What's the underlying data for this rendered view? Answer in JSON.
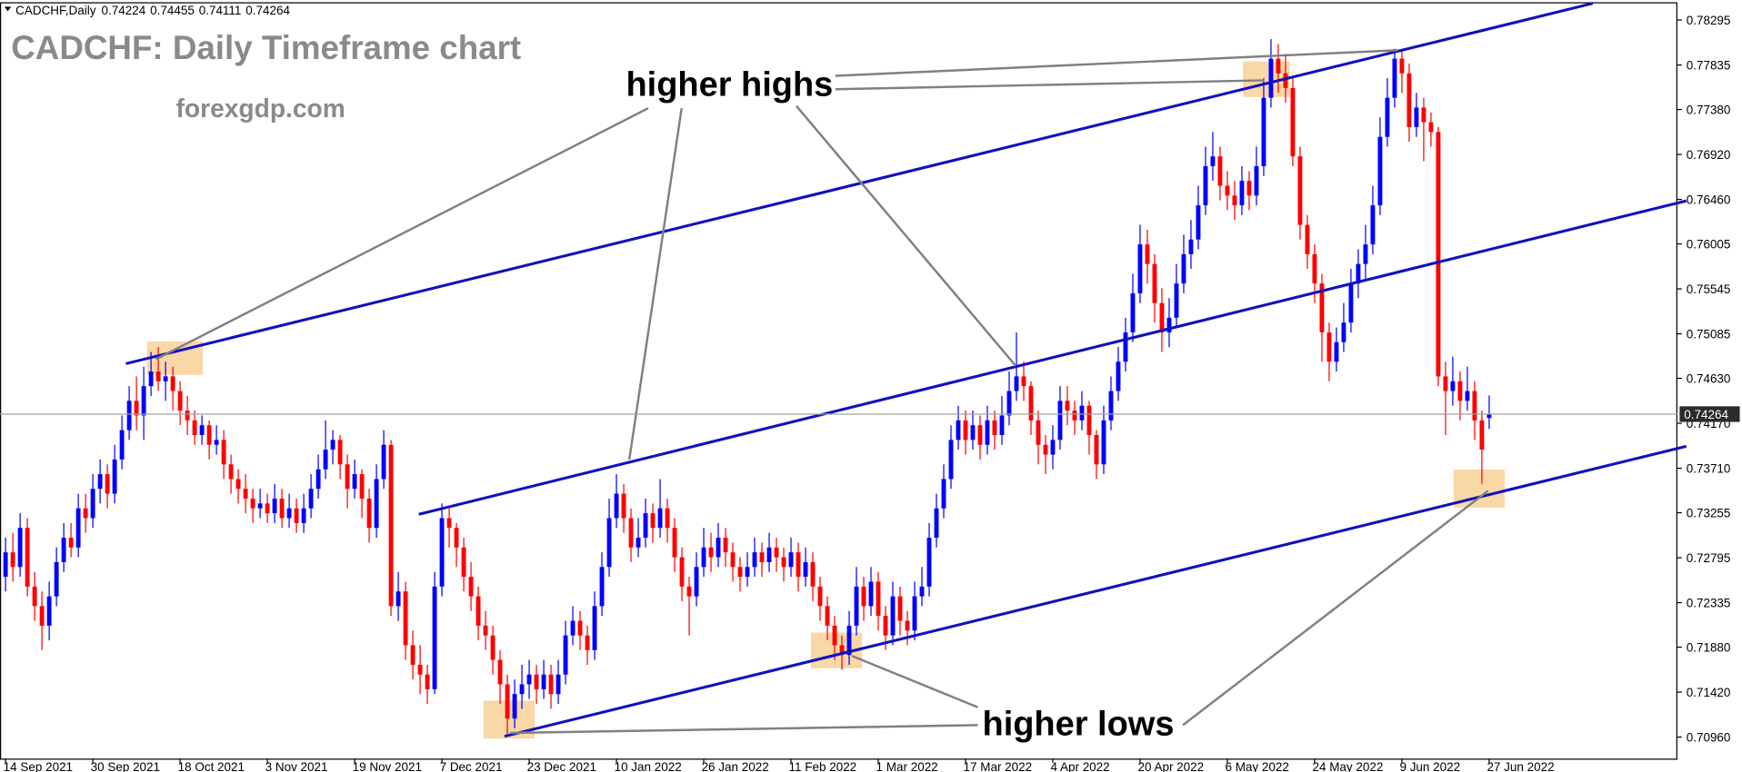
{
  "chart_data": {
    "type": "candlestick",
    "symbol": "CADCHF,Daily",
    "title": "CADCHF: Daily Timeframe chart",
    "subtitle": "forexgdp.com",
    "annotations": [
      "higher highs",
      "higher lows"
    ],
    "up_color": "#0000ff",
    "down_color": "#ff0000",
    "grid": false,
    "ylim": [
      0.7074,
      0.785
    ],
    "yticks": [
      0.78295,
      0.77835,
      {
        "value": 0.7738,
        "label": "0.77380"
      },
      {
        "value": 0.7692,
        "label": "0.76920"
      },
      {
        "value": 0.7646,
        "label": "0.76460"
      },
      0.76005,
      0.75545,
      0.75085,
      {
        "value": 0.7463,
        "label": "0.74630"
      },
      {
        "value": 0.7417,
        "label": "0.74170"
      },
      {
        "value": 0.7371,
        "label": "0.73710"
      },
      0.73255,
      0.72795,
      0.72335,
      {
        "value": 0.7188,
        "label": "0.71880"
      },
      {
        "value": 0.7142,
        "label": "0.71420"
      },
      {
        "value": 0.7096,
        "label": "0.70960"
      }
    ],
    "categories": [
      "14 Sep 2021",
      null,
      null,
      null,
      null,
      null,
      null,
      null,
      null,
      null,
      null,
      null,
      "30 Sep 2021",
      null,
      null,
      null,
      null,
      null,
      null,
      null,
      null,
      null,
      null,
      null,
      "18 Oct 2021",
      null,
      null,
      null,
      null,
      null,
      null,
      null,
      null,
      null,
      null,
      null,
      "3 Nov 2021",
      null,
      null,
      null,
      null,
      null,
      null,
      null,
      null,
      null,
      null,
      null,
      "19 Nov 2021",
      null,
      null,
      null,
      null,
      null,
      null,
      null,
      null,
      null,
      null,
      null,
      "7 Dec 2021",
      null,
      null,
      null,
      null,
      null,
      null,
      null,
      null,
      null,
      null,
      null,
      "23 Dec 2021",
      null,
      null,
      null,
      null,
      null,
      null,
      null,
      null,
      null,
      null,
      null,
      "10 Jan 2022",
      null,
      null,
      null,
      null,
      null,
      null,
      null,
      null,
      null,
      null,
      null,
      "26 Jan 2022",
      null,
      null,
      null,
      null,
      null,
      null,
      null,
      null,
      null,
      null,
      null,
      "11 Feb 2022",
      null,
      null,
      null,
      null,
      null,
      null,
      null,
      null,
      null,
      null,
      null,
      "1 Mar 2022",
      null,
      null,
      null,
      null,
      null,
      null,
      null,
      null,
      null,
      null,
      null,
      "17 Mar 2022",
      null,
      null,
      null,
      null,
      null,
      null,
      null,
      null,
      null,
      null,
      null,
      "4 Apr 2022",
      null,
      null,
      null,
      null,
      null,
      null,
      null,
      null,
      null,
      null,
      null,
      "20 Apr 2022",
      null,
      null,
      null,
      null,
      null,
      null,
      null,
      null,
      null,
      null,
      null,
      "6 May 2022",
      null,
      null,
      null,
      null,
      null,
      null,
      null,
      null,
      null,
      null,
      null,
      "24 May 2022",
      null,
      null,
      null,
      null,
      null,
      null,
      null,
      null,
      null,
      null,
      null,
      "9 Jun 2022",
      null,
      null,
      null,
      null,
      null,
      null,
      null,
      null,
      null,
      null,
      null,
      "27 Jun 2022"
    ],
    "ohlc": [
      [
        0.726,
        0.73,
        0.7245,
        0.7285
      ],
      [
        0.7285,
        0.7305,
        0.7255,
        0.727
      ],
      [
        0.727,
        0.7325,
        0.726,
        0.731
      ],
      [
        0.731,
        0.732,
        0.724,
        0.725
      ],
      [
        0.725,
        0.7265,
        0.7215,
        0.723
      ],
      [
        0.723,
        0.7245,
        0.7185,
        0.721
      ],
      [
        0.721,
        0.7255,
        0.7195,
        0.724
      ],
      [
        0.724,
        0.729,
        0.723,
        0.7275
      ],
      [
        0.7275,
        0.7315,
        0.7265,
        0.73
      ],
      [
        0.73,
        0.7315,
        0.728,
        0.729
      ],
      [
        0.729,
        0.7345,
        0.728,
        0.733
      ],
      [
        0.733,
        0.7345,
        0.7305,
        0.732
      ],
      [
        0.732,
        0.7365,
        0.731,
        0.735
      ],
      [
        0.735,
        0.738,
        0.7335,
        0.7365
      ],
      [
        0.7365,
        0.7375,
        0.733,
        0.7345
      ],
      [
        0.7345,
        0.7395,
        0.7335,
        0.738
      ],
      [
        0.738,
        0.7425,
        0.737,
        0.741
      ],
      [
        0.741,
        0.7455,
        0.74,
        0.744
      ],
      [
        0.744,
        0.7465,
        0.741,
        0.7425
      ],
      [
        0.7425,
        0.7475,
        0.74,
        0.7455
      ],
      [
        0.7455,
        0.749,
        0.7445,
        0.747
      ],
      [
        0.747,
        0.7495,
        0.745,
        0.746
      ],
      [
        0.746,
        0.748,
        0.744,
        0.7465
      ],
      [
        0.7465,
        0.7475,
        0.743,
        0.745
      ],
      [
        0.745,
        0.746,
        0.7415,
        0.743
      ],
      [
        0.743,
        0.7445,
        0.7405,
        0.742
      ],
      [
        0.742,
        0.743,
        0.7395,
        0.7405
      ],
      [
        0.7405,
        0.7425,
        0.7395,
        0.7415
      ],
      [
        0.7415,
        0.742,
        0.738,
        0.7395
      ],
      [
        0.7395,
        0.7415,
        0.7385,
        0.74
      ],
      [
        0.74,
        0.741,
        0.736,
        0.7375
      ],
      [
        0.7375,
        0.7385,
        0.7345,
        0.736
      ],
      [
        0.736,
        0.737,
        0.7335,
        0.735
      ],
      [
        0.735,
        0.7365,
        0.7325,
        0.734
      ],
      [
        0.734,
        0.735,
        0.7315,
        0.733
      ],
      [
        0.733,
        0.735,
        0.732,
        0.7335
      ],
      [
        0.7335,
        0.7345,
        0.7315,
        0.7325
      ],
      [
        0.7325,
        0.7355,
        0.7315,
        0.734
      ],
      [
        0.734,
        0.735,
        0.731,
        0.732
      ],
      [
        0.732,
        0.7345,
        0.731,
        0.733
      ],
      [
        0.733,
        0.734,
        0.7305,
        0.7315
      ],
      [
        0.7315,
        0.7345,
        0.7305,
        0.733
      ],
      [
        0.733,
        0.7365,
        0.732,
        0.735
      ],
      [
        0.735,
        0.7385,
        0.734,
        0.737
      ],
      [
        0.737,
        0.742,
        0.736,
        0.739
      ],
      [
        0.739,
        0.741,
        0.7375,
        0.74
      ],
      [
        0.74,
        0.7405,
        0.736,
        0.7375
      ],
      [
        0.7375,
        0.7385,
        0.733,
        0.735
      ],
      [
        0.735,
        0.738,
        0.734,
        0.7365
      ],
      [
        0.7365,
        0.737,
        0.732,
        0.734
      ],
      [
        0.734,
        0.735,
        0.7295,
        0.731
      ],
      [
        0.731,
        0.7375,
        0.73,
        0.736
      ],
      [
        0.736,
        0.741,
        0.735,
        0.7395
      ],
      [
        0.7395,
        0.74,
        0.722,
        0.723
      ],
      [
        0.723,
        0.7265,
        0.7215,
        0.7245
      ],
      [
        0.7245,
        0.7255,
        0.7175,
        0.719
      ],
      [
        0.719,
        0.7205,
        0.7155,
        0.717
      ],
      [
        0.717,
        0.719,
        0.714,
        0.716
      ],
      [
        0.716,
        0.717,
        0.713,
        0.7145
      ],
      [
        0.7145,
        0.7265,
        0.714,
        0.725
      ],
      [
        0.725,
        0.7335,
        0.724,
        0.732
      ],
      [
        0.732,
        0.733,
        0.729,
        0.731
      ],
      [
        0.731,
        0.7315,
        0.727,
        0.729
      ],
      [
        0.729,
        0.73,
        0.7245,
        0.726
      ],
      [
        0.726,
        0.7275,
        0.7225,
        0.724
      ],
      [
        0.724,
        0.725,
        0.7195,
        0.721
      ],
      [
        0.721,
        0.7225,
        0.7185,
        0.72
      ],
      [
        0.72,
        0.721,
        0.716,
        0.7175
      ],
      [
        0.7175,
        0.7185,
        0.713,
        0.715
      ],
      [
        0.715,
        0.716,
        0.7098,
        0.7115
      ],
      [
        0.7115,
        0.7155,
        0.7105,
        0.714
      ],
      [
        0.714,
        0.717,
        0.7125,
        0.715
      ],
      [
        0.715,
        0.7175,
        0.7135,
        0.716
      ],
      [
        0.716,
        0.717,
        0.713,
        0.7145
      ],
      [
        0.7145,
        0.7175,
        0.7135,
        0.716
      ],
      [
        0.716,
        0.717,
        0.7125,
        0.714
      ],
      [
        0.714,
        0.7175,
        0.713,
        0.716
      ],
      [
        0.716,
        0.7215,
        0.715,
        0.72
      ],
      [
        0.72,
        0.723,
        0.719,
        0.7215
      ],
      [
        0.7215,
        0.7225,
        0.7185,
        0.72
      ],
      [
        0.72,
        0.721,
        0.717,
        0.7185
      ],
      [
        0.7185,
        0.7245,
        0.7175,
        0.723
      ],
      [
        0.723,
        0.7285,
        0.722,
        0.727
      ],
      [
        0.727,
        0.734,
        0.726,
        0.732
      ],
      [
        0.732,
        0.7365,
        0.731,
        0.7345
      ],
      [
        0.7345,
        0.7355,
        0.7305,
        0.732
      ],
      [
        0.732,
        0.733,
        0.7275,
        0.729
      ],
      [
        0.729,
        0.732,
        0.728,
        0.73
      ],
      [
        0.73,
        0.734,
        0.729,
        0.7325
      ],
      [
        0.7325,
        0.7335,
        0.7295,
        0.731
      ],
      [
        0.731,
        0.736,
        0.73,
        0.733
      ],
      [
        0.733,
        0.734,
        0.7295,
        0.731
      ],
      [
        0.731,
        0.732,
        0.7265,
        0.728
      ],
      [
        0.728,
        0.729,
        0.7235,
        0.725
      ],
      [
        0.725,
        0.726,
        0.72,
        0.724
      ],
      [
        0.724,
        0.7285,
        0.723,
        0.727
      ],
      [
        0.727,
        0.731,
        0.726,
        0.729
      ],
      [
        0.729,
        0.7305,
        0.7265,
        0.728
      ],
      [
        0.728,
        0.7315,
        0.727,
        0.73
      ],
      [
        0.73,
        0.731,
        0.727,
        0.7285
      ],
      [
        0.7285,
        0.7295,
        0.7255,
        0.727
      ],
      [
        0.727,
        0.728,
        0.7245,
        0.726
      ],
      [
        0.726,
        0.7285,
        0.725,
        0.727
      ],
      [
        0.727,
        0.73,
        0.726,
        0.7285
      ],
      [
        0.7285,
        0.7295,
        0.726,
        0.7275
      ],
      [
        0.7275,
        0.7305,
        0.7265,
        0.729
      ],
      [
        0.729,
        0.73,
        0.7265,
        0.728
      ],
      [
        0.728,
        0.729,
        0.7255,
        0.727
      ],
      [
        0.727,
        0.73,
        0.726,
        0.7285
      ],
      [
        0.7285,
        0.7295,
        0.7245,
        0.726
      ],
      [
        0.726,
        0.729,
        0.725,
        0.7275
      ],
      [
        0.7275,
        0.7285,
        0.7235,
        0.725
      ],
      [
        0.725,
        0.726,
        0.7215,
        0.723
      ],
      [
        0.723,
        0.724,
        0.7195,
        0.721
      ],
      [
        0.721,
        0.722,
        0.7175,
        0.719
      ],
      [
        0.719,
        0.72,
        0.7165,
        0.718
      ],
      [
        0.718,
        0.7225,
        0.717,
        0.721
      ],
      [
        0.721,
        0.727,
        0.72,
        0.725
      ],
      [
        0.725,
        0.726,
        0.7215,
        0.723
      ],
      [
        0.723,
        0.727,
        0.722,
        0.7255
      ],
      [
        0.7255,
        0.7265,
        0.7205,
        0.722
      ],
      [
        0.722,
        0.723,
        0.7185,
        0.72
      ],
      [
        0.72,
        0.7255,
        0.719,
        0.724
      ],
      [
        0.724,
        0.725,
        0.72,
        0.7215
      ],
      [
        0.7215,
        0.7225,
        0.719,
        0.7205
      ],
      [
        0.7205,
        0.7255,
        0.7195,
        0.724
      ],
      [
        0.724,
        0.727,
        0.723,
        0.725
      ],
      [
        0.725,
        0.7315,
        0.724,
        0.73
      ],
      [
        0.73,
        0.7345,
        0.729,
        0.733
      ],
      [
        0.733,
        0.7375,
        0.732,
        0.736
      ],
      [
        0.736,
        0.7415,
        0.735,
        0.74
      ],
      [
        0.74,
        0.7435,
        0.739,
        0.742
      ],
      [
        0.742,
        0.743,
        0.7385,
        0.74
      ],
      [
        0.74,
        0.743,
        0.739,
        0.7415
      ],
      [
        0.7415,
        0.7425,
        0.738,
        0.7395
      ],
      [
        0.7395,
        0.7435,
        0.7385,
        0.742
      ],
      [
        0.742,
        0.743,
        0.739,
        0.7405
      ],
      [
        0.7405,
        0.7445,
        0.7395,
        0.7425
      ],
      [
        0.7425,
        0.747,
        0.7415,
        0.745
      ],
      [
        0.745,
        0.751,
        0.744,
        0.7465
      ],
      [
        0.7465,
        0.748,
        0.744,
        0.7455
      ],
      [
        0.7455,
        0.746,
        0.7405,
        0.742
      ],
      [
        0.742,
        0.743,
        0.7375,
        0.7395
      ],
      [
        0.7395,
        0.7405,
        0.7365,
        0.7385
      ],
      [
        0.7385,
        0.7415,
        0.737,
        0.74
      ],
      [
        0.74,
        0.7455,
        0.739,
        0.744
      ],
      [
        0.744,
        0.7455,
        0.7415,
        0.743
      ],
      [
        0.743,
        0.744,
        0.7405,
        0.742
      ],
      [
        0.742,
        0.745,
        0.741,
        0.7435
      ],
      [
        0.7435,
        0.744,
        0.7385,
        0.7405
      ],
      [
        0.7405,
        0.741,
        0.736,
        0.7375
      ],
      [
        0.7375,
        0.7435,
        0.7365,
        0.742
      ],
      [
        0.742,
        0.7465,
        0.741,
        0.745
      ],
      [
        0.745,
        0.7495,
        0.744,
        0.748
      ],
      [
        0.748,
        0.7525,
        0.747,
        0.751
      ],
      [
        0.751,
        0.757,
        0.75,
        0.755
      ],
      [
        0.755,
        0.762,
        0.754,
        0.76
      ],
      [
        0.76,
        0.7615,
        0.756,
        0.758
      ],
      [
        0.758,
        0.759,
        0.752,
        0.754
      ],
      [
        0.754,
        0.7555,
        0.749,
        0.751
      ],
      [
        0.751,
        0.7545,
        0.7495,
        0.7525
      ],
      [
        0.7525,
        0.758,
        0.7515,
        0.756
      ],
      [
        0.756,
        0.761,
        0.755,
        0.759
      ],
      [
        0.759,
        0.7625,
        0.7575,
        0.7605
      ],
      [
        0.7605,
        0.766,
        0.7595,
        0.764
      ],
      [
        0.764,
        0.77,
        0.763,
        0.768
      ],
      [
        0.768,
        0.7715,
        0.7665,
        0.769
      ],
      [
        0.769,
        0.77,
        0.7645,
        0.766
      ],
      [
        0.766,
        0.7675,
        0.7635,
        0.765
      ],
      [
        0.765,
        0.7665,
        0.7625,
        0.764
      ],
      [
        0.764,
        0.768,
        0.763,
        0.7665
      ],
      [
        0.7665,
        0.7675,
        0.7635,
        0.765
      ],
      [
        0.765,
        0.77,
        0.764,
        0.768
      ],
      [
        0.768,
        0.777,
        0.767,
        0.775
      ],
      [
        0.775,
        0.781,
        0.774,
        0.779
      ],
      [
        0.779,
        0.7805,
        0.7755,
        0.7775
      ],
      [
        0.7775,
        0.7795,
        0.7745,
        0.776
      ],
      [
        0.776,
        0.777,
        0.768,
        0.769
      ],
      [
        0.769,
        0.77,
        0.7605,
        0.762
      ],
      [
        0.762,
        0.763,
        0.7575,
        0.759
      ],
      [
        0.759,
        0.76,
        0.754,
        0.756
      ],
      [
        0.756,
        0.757,
        0.748,
        0.751
      ],
      [
        0.751,
        0.752,
        0.746,
        0.748
      ],
      [
        0.748,
        0.7515,
        0.747,
        0.75
      ],
      [
        0.75,
        0.754,
        0.749,
        0.752
      ],
      [
        0.752,
        0.7575,
        0.751,
        0.756
      ],
      [
        0.756,
        0.7595,
        0.7545,
        0.758
      ],
      [
        0.758,
        0.762,
        0.7565,
        0.76
      ],
      [
        0.76,
        0.766,
        0.759,
        0.764
      ],
      [
        0.764,
        0.773,
        0.763,
        0.771
      ],
      [
        0.771,
        0.777,
        0.77,
        0.775
      ],
      [
        0.775,
        0.78,
        0.774,
        0.779
      ],
      [
        0.779,
        0.78,
        0.7755,
        0.7775
      ],
      [
        0.7775,
        0.7785,
        0.7705,
        0.772
      ],
      [
        0.772,
        0.7755,
        0.771,
        0.774
      ],
      [
        0.774,
        0.775,
        0.7685,
        0.7725
      ],
      [
        0.7725,
        0.7735,
        0.77,
        0.7715
      ],
      [
        0.7715,
        0.772,
        0.7455,
        0.7465
      ],
      [
        0.7465,
        0.748,
        0.7405,
        0.745
      ],
      [
        0.745,
        0.7485,
        0.7435,
        0.746
      ],
      [
        0.746,
        0.747,
        0.742,
        0.744
      ],
      [
        0.744,
        0.7475,
        0.743,
        0.745
      ],
      [
        0.745,
        0.746,
        0.74,
        0.742
      ],
      [
        0.742,
        0.743,
        0.7355,
        0.739
      ],
      [
        0.74224,
        0.74455,
        0.74111,
        0.74264
      ]
    ]
  }
}
